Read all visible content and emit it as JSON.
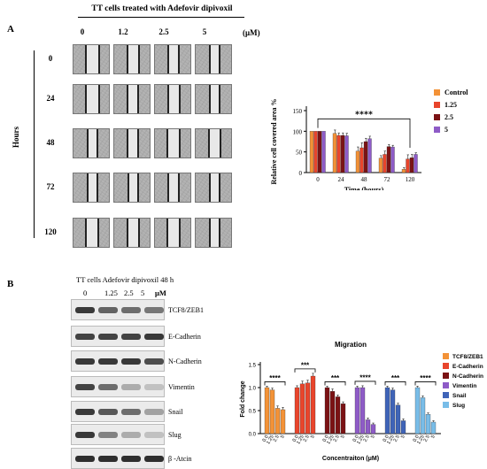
{
  "panel_a": {
    "label": "A",
    "title": "TT cells treated with Adefovir dipivoxil",
    "unit": "(μM)",
    "columns": [
      "0",
      "1.2",
      "2.5",
      "5"
    ],
    "rows": [
      "0",
      "24",
      "48",
      "72",
      "120"
    ],
    "row_axis_label": "Hours",
    "gap_fraction": [
      [
        0.4,
        0.36,
        0.34,
        0.3
      ],
      [
        0.4,
        0.34,
        0.36,
        0.32
      ],
      [
        0.32,
        0.34,
        0.38,
        0.36
      ],
      [
        0.3,
        0.32,
        0.34,
        0.3
      ],
      [
        0.38,
        0.36,
        0.38,
        0.3
      ]
    ]
  },
  "panel_b": {
    "label": "B",
    "title": "TT cells Adefovir dipivoxil 48 h",
    "unit": "μM",
    "columns": [
      "0",
      "1.25",
      "2.5",
      "5"
    ],
    "blots": [
      {
        "name": "TCF8/ZEB1",
        "intensity": [
          0.85,
          0.65,
          0.6,
          0.55
        ]
      },
      {
        "name": "E-Cadherin",
        "intensity": [
          0.8,
          0.8,
          0.8,
          0.85
        ]
      },
      {
        "name": "N-Cadherin",
        "intensity": [
          0.85,
          0.85,
          0.85,
          0.75
        ]
      },
      {
        "name": "Vimentin",
        "intensity": [
          0.8,
          0.6,
          0.3,
          0.2
        ]
      },
      {
        "name": "Snail",
        "intensity": [
          0.85,
          0.7,
          0.6,
          0.35
        ]
      },
      {
        "name": "Slug",
        "intensity": [
          0.85,
          0.5,
          0.3,
          0.2
        ]
      },
      {
        "name": "β -Atcin",
        "intensity": [
          0.9,
          0.9,
          0.9,
          0.9
        ]
      }
    ]
  },
  "chart_data": [
    {
      "type": "bar",
      "title": "",
      "xlabel": "Time (hours)",
      "ylabel": "Relative cell covered area %",
      "categories": [
        "0",
        "24",
        "48",
        "72",
        "120"
      ],
      "ylim": [
        0,
        150
      ],
      "yticks": [
        0,
        50,
        100,
        150
      ],
      "significance": "****",
      "legend_position": "right",
      "series": [
        {
          "name": "Control",
          "color": "#f39237",
          "values": [
            100,
            95,
            52,
            35,
            8
          ],
          "errors": [
            0,
            8,
            10,
            6,
            4
          ]
        },
        {
          "name": "1.25",
          "color": "#e8452c",
          "values": [
            100,
            90,
            60,
            44,
            33
          ],
          "errors": [
            0,
            6,
            12,
            8,
            10
          ]
        },
        {
          "name": "2.5",
          "color": "#7b1214",
          "values": [
            100,
            90,
            75,
            63,
            36
          ],
          "errors": [
            0,
            6,
            8,
            5,
            8
          ]
        },
        {
          "name": "5",
          "color": "#8e5bc7",
          "values": [
            100,
            89,
            82,
            62,
            44
          ],
          "errors": [
            0,
            6,
            6,
            4,
            4
          ]
        }
      ]
    },
    {
      "type": "bar",
      "title": "Migration",
      "xlabel": "Concentraiton (μM)",
      "ylabel": "Fold change",
      "ylim": [
        0,
        1.5
      ],
      "yticks": [
        0.0,
        0.5,
        1.0,
        1.5
      ],
      "dose_labels": [
        "0.0",
        "1.25",
        "2.5",
        "5"
      ],
      "legend_position": "right",
      "groups": [
        {
          "name": "TCF8/ZEB1",
          "color": "#f39237",
          "values": [
            1.0,
            0.95,
            0.55,
            0.52
          ],
          "errors": [
            0.03,
            0.04,
            0.05,
            0.05
          ],
          "sig": "****"
        },
        {
          "name": "E-Cadherin",
          "color": "#e8452c",
          "values": [
            1.0,
            1.08,
            1.1,
            1.25
          ],
          "errors": [
            0.04,
            0.06,
            0.06,
            0.06
          ],
          "sig": "***"
        },
        {
          "name": "N-Cadherin",
          "color": "#7b1214",
          "values": [
            1.0,
            0.92,
            0.8,
            0.65
          ],
          "errors": [
            0.03,
            0.05,
            0.04,
            0.04
          ],
          "sig": "***"
        },
        {
          "name": "Vimentin",
          "color": "#8e5bc7",
          "values": [
            1.0,
            1.0,
            0.3,
            0.2
          ],
          "errors": [
            0.03,
            0.04,
            0.04,
            0.03
          ],
          "sig": "****"
        },
        {
          "name": "Snail",
          "color": "#3f64b8",
          "values": [
            1.0,
            0.95,
            0.62,
            0.28
          ],
          "errors": [
            0.03,
            0.04,
            0.04,
            0.04
          ],
          "sig": "***"
        },
        {
          "name": "Slug",
          "color": "#79bde8",
          "values": [
            1.0,
            0.78,
            0.42,
            0.25
          ],
          "errors": [
            0.03,
            0.04,
            0.03,
            0.03
          ],
          "sig": "****"
        }
      ]
    }
  ]
}
